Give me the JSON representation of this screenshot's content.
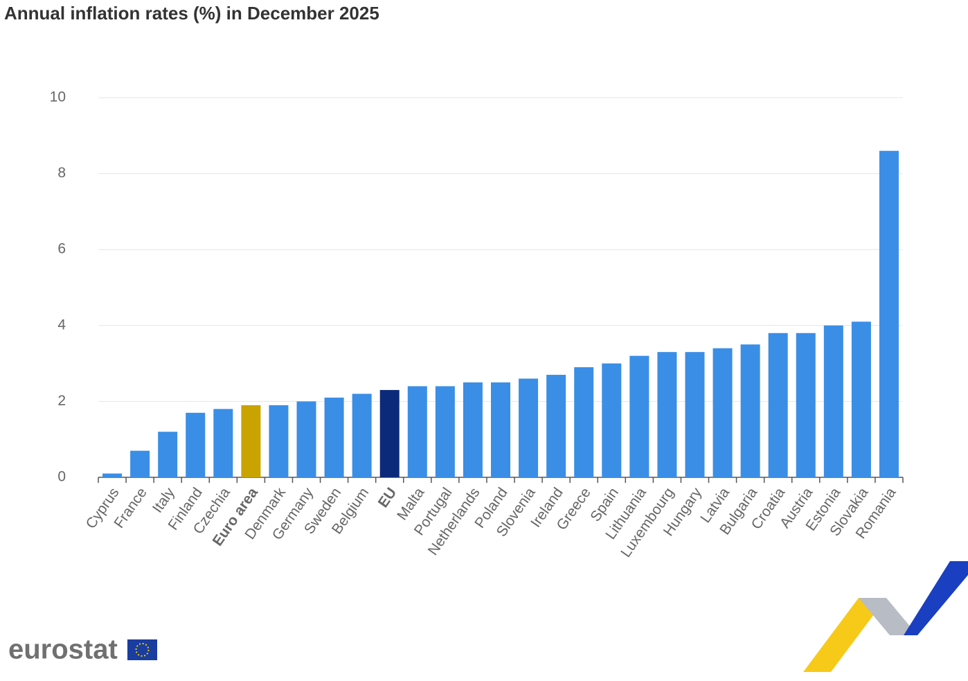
{
  "chart_data": {
    "type": "bar",
    "title": "Annual inflation rates (%) in December 2025",
    "categories": [
      "Cyprus",
      "France",
      "Italy",
      "Finland",
      "Czechia",
      "Euro area",
      "Denmark",
      "Germany",
      "Sweden",
      "Belgium",
      "EU",
      "Malta",
      "Portugal",
      "Netherlands",
      "Poland",
      "Slovenia",
      "Ireland",
      "Greece",
      "Spain",
      "Lithuania",
      "Luxembourg",
      "Hungary",
      "Latvia",
      "Bulgaria",
      "Croatia",
      "Austria",
      "Estonia",
      "Slovakia",
      "Romania"
    ],
    "values": [
      0.1,
      0.7,
      1.2,
      1.7,
      1.8,
      1.9,
      1.9,
      2.0,
      2.1,
      2.2,
      2.3,
      2.4,
      2.4,
      2.5,
      2.5,
      2.6,
      2.7,
      2.9,
      3.0,
      3.2,
      3.3,
      3.3,
      3.4,
      3.5,
      3.8,
      3.8,
      4.0,
      4.1,
      8.6
    ],
    "color": "#3a8ee6",
    "colors": [
      "#3a8ee6",
      "#3a8ee6",
      "#3a8ee6",
      "#3a8ee6",
      "#3a8ee6",
      "#c9a300",
      "#3a8ee6",
      "#3a8ee6",
      "#3a8ee6",
      "#3a8ee6",
      "#0c2a7a",
      "#3a8ee6",
      "#3a8ee6",
      "#3a8ee6",
      "#3a8ee6",
      "#3a8ee6",
      "#3a8ee6",
      "#3a8ee6",
      "#3a8ee6",
      "#3a8ee6",
      "#3a8ee6",
      "#3a8ee6",
      "#3a8ee6",
      "#3a8ee6",
      "#3a8ee6",
      "#3a8ee6",
      "#3a8ee6",
      "#3a8ee6",
      "#3a8ee6"
    ],
    "ylim": [
      0,
      10
    ],
    "yticks": [
      0,
      2,
      4,
      6,
      8,
      10
    ],
    "grid": true,
    "logo": "eurostat"
  }
}
